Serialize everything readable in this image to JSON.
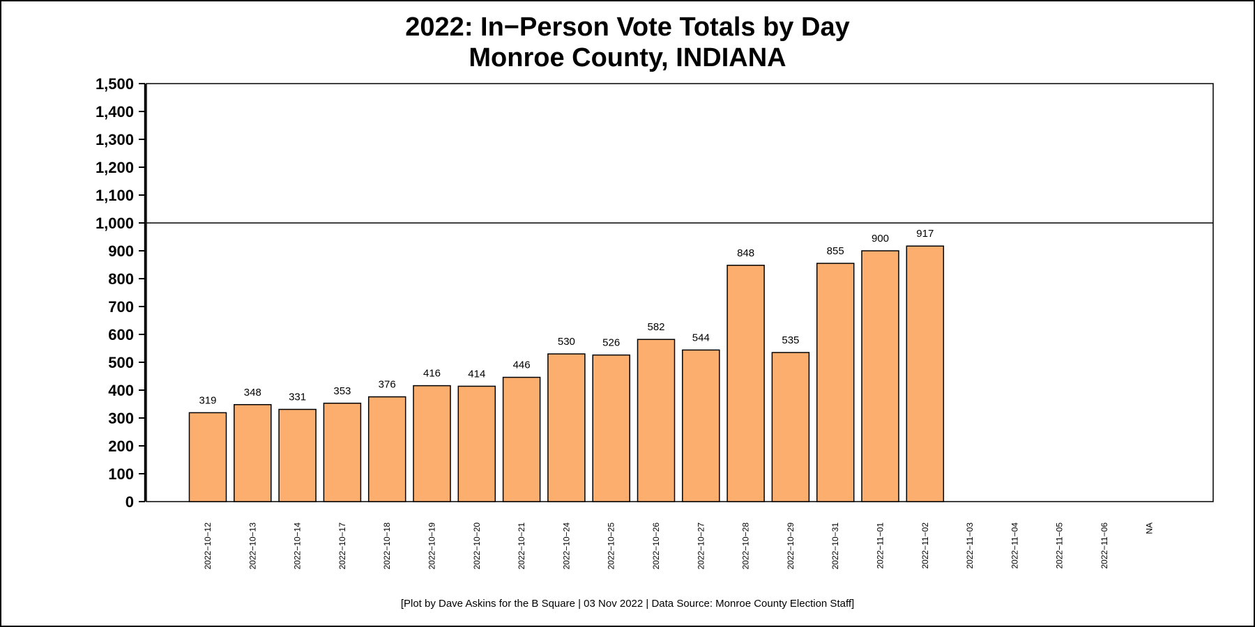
{
  "chart_data": {
    "type": "bar",
    "title": "2022: In−Person Vote Totals by Day",
    "subtitle": "Monroe County, INDIANA",
    "caption": "[Plot by Dave Askins for the B Square | 03 Nov 2022 | Data Source: Monroe County Election Staff]",
    "categories": [
      "2022−10−12",
      "2022−10−13",
      "2022−10−14",
      "2022−10−17",
      "2022−10−18",
      "2022−10−19",
      "2022−10−20",
      "2022−10−21",
      "2022−10−24",
      "2022−10−25",
      "2022−10−26",
      "2022−10−27",
      "2022−10−28",
      "2022−10−29",
      "2022−10−31",
      "2022−11−01",
      "2022−11−02",
      "2022−11−03",
      "2022−11−04",
      "2022−11−05",
      "2022−11−06",
      "NA"
    ],
    "values": [
      319,
      348,
      331,
      353,
      376,
      416,
      414,
      446,
      530,
      526,
      582,
      544,
      848,
      535,
      855,
      900,
      917,
      null,
      null,
      null,
      null,
      null
    ],
    "data_labels": [
      "319",
      "348",
      "331",
      "353",
      "376",
      "416",
      "414",
      "446",
      "530",
      "526",
      "582",
      "544",
      "848",
      "535",
      "855",
      "900",
      "917",
      "",
      "",
      "",
      "",
      ""
    ],
    "ylim": [
      0,
      1500
    ],
    "yticks": [
      0,
      100,
      200,
      300,
      400,
      500,
      600,
      700,
      800,
      900,
      1000,
      1100,
      1200,
      1300,
      1400,
      1500
    ],
    "ytick_labels": [
      "0",
      "100",
      "200",
      "300",
      "400",
      "500",
      "600",
      "700",
      "800",
      "900",
      "1,000",
      "1,100",
      "1,200",
      "1,300",
      "1,400",
      "1,500"
    ],
    "reference_line": 1000,
    "xlabel": "",
    "ylabel": "",
    "bar_color": "#fbae6e",
    "bar_edge_color": "#000000"
  }
}
